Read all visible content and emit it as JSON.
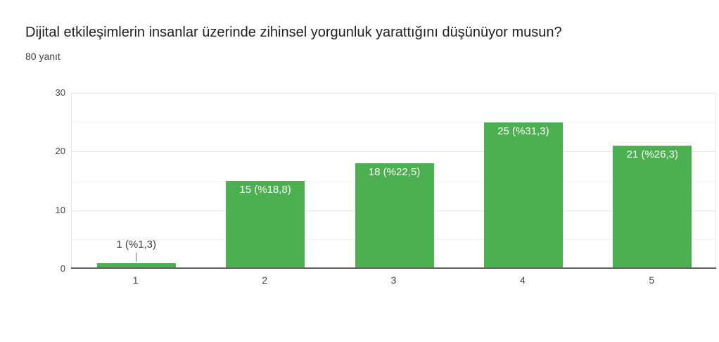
{
  "header": {
    "title": "Dijital etkileşimlerin insanlar üzerinde zihinsel yorgunluk yarattığını düşünüyor musun?",
    "subtitle": "80 yanıt"
  },
  "chart_data": {
    "type": "bar",
    "title": "Dijital etkileşimlerin insanlar üzerinde zihinsel yorgunluk yarattığını düşünüyor musun?",
    "subtitle": "80 yanıt",
    "categories": [
      "1",
      "2",
      "3",
      "4",
      "5"
    ],
    "values": [
      1,
      15,
      18,
      25,
      21
    ],
    "value_labels": [
      "1 (%1,3)",
      "15 (%18,8)",
      "18 (%22,5)",
      "25 (%31,3)",
      "21 (%26,3)"
    ],
    "percentages": [
      1.3,
      18.8,
      22.5,
      31.3,
      26.3
    ],
    "total_responses": 80,
    "xlabel": "",
    "ylabel": "",
    "ylim": [
      0,
      30
    ],
    "yticks_major": [
      0,
      10,
      20,
      30
    ],
    "yticks_minor": [
      5,
      15,
      25
    ],
    "grid": true,
    "legend": "none",
    "colors": {
      "bar": "#4caf50",
      "bar_label_inside": "#ffffff",
      "bar_label_outside": "#3c4043",
      "axis_line": "#616161",
      "gridline_major": "#e6e6e6",
      "gridline_minor": "#f2f2f2",
      "tick_label": "#444444",
      "callout_line": "#757575",
      "title": "#212121",
      "subtitle": "#3c4043"
    }
  }
}
